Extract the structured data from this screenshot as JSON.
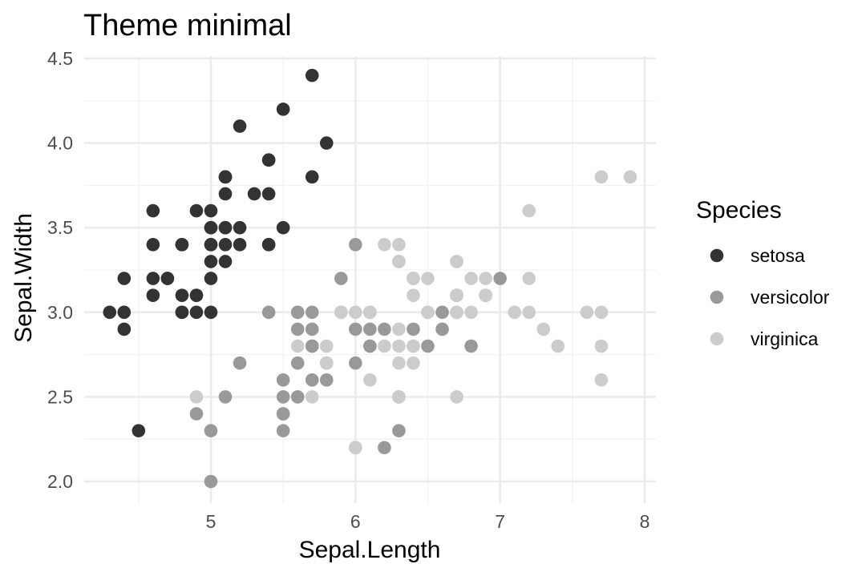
{
  "chart_data": {
    "type": "scatter",
    "title": "Theme minimal",
    "xlabel": "Sepal.Length",
    "ylabel": "Sepal.Width",
    "xlim": [
      4.3,
      7.9
    ],
    "ylim": [
      2.0,
      4.4
    ],
    "x_ticks": [
      5,
      6,
      7,
      8
    ],
    "x_tick_labels": [
      "5",
      "6",
      "7",
      "8"
    ],
    "y_ticks": [
      2.0,
      2.5,
      3.0,
      3.5,
      4.0,
      4.5
    ],
    "y_tick_labels": [
      "2.0",
      "2.5",
      "3.0",
      "3.5",
      "4.0",
      "4.5"
    ],
    "grid": true,
    "legend": {
      "title": "Species",
      "position": "right"
    },
    "series": [
      {
        "name": "setosa",
        "color": "#333333",
        "x": [
          5.1,
          4.9,
          4.7,
          4.6,
          5.0,
          5.4,
          4.6,
          5.0,
          4.4,
          4.9,
          5.4,
          4.8,
          4.8,
          4.3,
          5.8,
          5.7,
          5.4,
          5.1,
          5.7,
          5.1,
          5.4,
          5.1,
          4.6,
          5.1,
          4.8,
          5.0,
          5.0,
          5.2,
          5.2,
          4.7,
          4.8,
          5.4,
          5.2,
          5.5,
          4.9,
          5.0,
          5.5,
          4.9,
          4.4,
          5.1,
          5.0,
          4.5,
          4.4,
          5.0,
          5.1,
          4.8,
          5.1,
          4.6,
          5.3,
          5.0
        ],
        "y": [
          3.5,
          3.0,
          3.2,
          3.1,
          3.6,
          3.9,
          3.4,
          3.4,
          2.9,
          3.1,
          3.7,
          3.4,
          3.0,
          3.0,
          4.0,
          4.4,
          3.9,
          3.5,
          3.8,
          3.8,
          3.4,
          3.7,
          3.6,
          3.3,
          3.4,
          3.0,
          3.4,
          3.5,
          3.4,
          3.2,
          3.1,
          3.4,
          4.1,
          4.2,
          3.1,
          3.2,
          3.5,
          3.6,
          3.0,
          3.4,
          3.5,
          2.3,
          3.2,
          3.5,
          3.8,
          3.0,
          3.8,
          3.2,
          3.7,
          3.3
        ]
      },
      {
        "name": "versicolor",
        "color": "#999999",
        "x": [
          7.0,
          6.4,
          6.9,
          5.5,
          6.5,
          5.7,
          6.3,
          4.9,
          6.6,
          5.2,
          5.0,
          5.9,
          6.0,
          6.1,
          5.6,
          6.7,
          5.6,
          5.8,
          6.2,
          5.6,
          5.9,
          6.1,
          6.3,
          6.1,
          6.4,
          6.6,
          6.8,
          6.7,
          6.0,
          5.7,
          5.5,
          5.5,
          5.8,
          6.0,
          5.4,
          6.0,
          6.7,
          6.3,
          5.6,
          5.5,
          5.5,
          6.1,
          5.8,
          5.0,
          5.6,
          5.7,
          5.7,
          6.2,
          5.1,
          5.7
        ],
        "y": [
          3.2,
          3.2,
          3.1,
          2.3,
          2.8,
          2.8,
          3.3,
          2.4,
          2.9,
          2.7,
          2.0,
          3.0,
          2.2,
          2.9,
          2.9,
          3.1,
          3.0,
          2.7,
          2.2,
          2.5,
          3.2,
          2.8,
          2.5,
          2.8,
          2.9,
          3.0,
          2.8,
          3.0,
          2.9,
          2.6,
          2.4,
          2.4,
          2.7,
          2.7,
          3.0,
          3.4,
          3.1,
          2.3,
          3.0,
          2.5,
          2.6,
          3.0,
          2.6,
          2.3,
          2.7,
          3.0,
          2.9,
          2.9,
          2.5,
          2.8
        ]
      },
      {
        "name": "virginica",
        "color": "#cccccc",
        "x": [
          6.3,
          5.8,
          7.1,
          6.3,
          6.5,
          7.6,
          4.9,
          7.3,
          6.7,
          7.2,
          6.5,
          6.4,
          6.8,
          5.7,
          5.8,
          6.4,
          6.5,
          7.7,
          7.7,
          6.0,
          6.9,
          5.6,
          7.7,
          6.3,
          6.7,
          7.2,
          6.2,
          6.1,
          6.4,
          7.2,
          7.4,
          7.9,
          6.4,
          6.3,
          6.1,
          7.7,
          6.3,
          6.4,
          6.0,
          6.9,
          6.7,
          6.9,
          5.8,
          6.8,
          6.7,
          6.7,
          6.3,
          6.5,
          6.2,
          5.9
        ],
        "y": [
          3.3,
          2.7,
          3.0,
          2.9,
          3.0,
          3.0,
          2.5,
          2.9,
          2.5,
          3.6,
          3.2,
          2.7,
          3.0,
          2.5,
          2.8,
          3.2,
          3.0,
          3.8,
          2.6,
          2.2,
          3.2,
          2.8,
          2.8,
          2.7,
          3.3,
          3.2,
          2.8,
          3.0,
          2.8,
          3.0,
          2.8,
          3.8,
          2.8,
          2.8,
          2.6,
          3.0,
          3.4,
          3.1,
          3.0,
          3.1,
          3.1,
          3.1,
          2.7,
          3.2,
          3.3,
          3.0,
          2.5,
          3.0,
          3.4,
          3.0
        ]
      }
    ]
  }
}
